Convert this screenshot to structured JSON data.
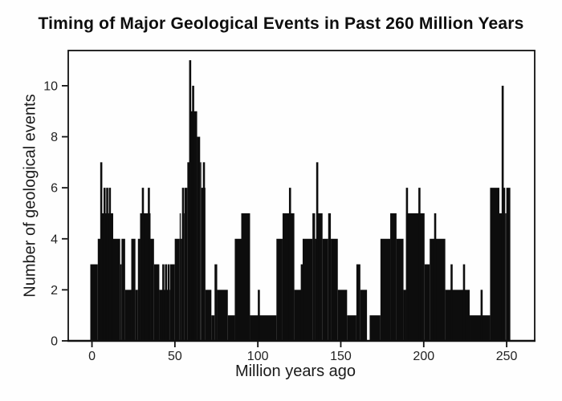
{
  "title": "Timing of Major Geological Events in Past 260 Million Years",
  "chart_data": {
    "type": "bar",
    "title": "Timing of Major Geological Events in Past 260 Million Years",
    "xlabel": "Million years ago",
    "ylabel": "Number of geological events",
    "xlim": [
      -14.3,
      266.9
    ],
    "ylim": [
      0,
      11.38
    ],
    "x_ticks": [
      0,
      50,
      100,
      150,
      200,
      250
    ],
    "y_ticks": [
      0,
      2,
      4,
      6,
      8,
      10
    ],
    "grid": false,
    "legend": false,
    "bar_color": "#0d0d0d",
    "axis_color": "#111111",
    "background_color": "#fefefe",
    "description": "Histogram (events per ~2 Myr bin) of numbers of major geological events versus time in millions of years ago; stepped black silhouette with thin spikes.",
    "segments_format": [
      "x_start_Myr",
      "x_end_Myr",
      "height_events"
    ],
    "segments": [
      [
        -1,
        3.5,
        3
      ],
      [
        3.5,
        5.3,
        4
      ],
      [
        5.3,
        12.8,
        5
      ],
      [
        12.8,
        17,
        4
      ],
      [
        17,
        17.8,
        3
      ],
      [
        17.8,
        20,
        4
      ],
      [
        20,
        23.7,
        2
      ],
      [
        23.7,
        26.2,
        4
      ],
      [
        26.2,
        27.7,
        2
      ],
      [
        27.7,
        29,
        4
      ],
      [
        29,
        35.3,
        5
      ],
      [
        35.3,
        37.4,
        4
      ],
      [
        37.4,
        40.6,
        3
      ],
      [
        40.6,
        47.1,
        2
      ],
      [
        47.1,
        49.9,
        3
      ],
      [
        49.9,
        52.9,
        4
      ],
      [
        52.9,
        53.5,
        5
      ],
      [
        53.5,
        54.2,
        4
      ],
      [
        54.2,
        55.8,
        5
      ],
      [
        55.8,
        57.5,
        6
      ],
      [
        57.5,
        59.2,
        7
      ],
      [
        59.2,
        63.4,
        9
      ],
      [
        63.4,
        65.2,
        8
      ],
      [
        65.2,
        65.9,
        7
      ],
      [
        65.9,
        68.4,
        6
      ],
      [
        68.4,
        72,
        2
      ],
      [
        72,
        73.9,
        1
      ],
      [
        73.9,
        75.5,
        3
      ],
      [
        75.5,
        81.9,
        2
      ],
      [
        81.9,
        86.1,
        1
      ],
      [
        86.1,
        90,
        4
      ],
      [
        90,
        95.3,
        5
      ],
      [
        95.3,
        111.2,
        1
      ],
      [
        111.2,
        114.9,
        4
      ],
      [
        114.9,
        122,
        5
      ],
      [
        122,
        127,
        2
      ],
      [
        127,
        132.9,
        4
      ],
      [
        132.9,
        134.5,
        5
      ],
      [
        134.5,
        135.3,
        4
      ],
      [
        135.3,
        139,
        5
      ],
      [
        139,
        142.4,
        4
      ],
      [
        142.4,
        144,
        5
      ],
      [
        144,
        148.2,
        4
      ],
      [
        148.2,
        153.8,
        2
      ],
      [
        153.8,
        159.4,
        1
      ],
      [
        159.4,
        161.8,
        3
      ],
      [
        161.8,
        165.8,
        2
      ],
      [
        165.8,
        167.4,
        0
      ],
      [
        167.4,
        173.9,
        1
      ],
      [
        173.9,
        179.8,
        4
      ],
      [
        179.8,
        183.6,
        5
      ],
      [
        183.6,
        187.8,
        4
      ],
      [
        187.8,
        189.4,
        2
      ],
      [
        189.4,
        200.5,
        5
      ],
      [
        200.5,
        203.6,
        3
      ],
      [
        203.6,
        213,
        4
      ],
      [
        213,
        227.7,
        2
      ],
      [
        227.7,
        240,
        1
      ],
      [
        240,
        245.6,
        6
      ],
      [
        245.6,
        247.4,
        5
      ],
      [
        247.4,
        249.1,
        6
      ],
      [
        249.1,
        249.8,
        5
      ],
      [
        249.8,
        252.2,
        6
      ]
    ],
    "spikes_format": [
      "x_Myr",
      "height_events"
    ],
    "spikes": [
      [
        5.6,
        7
      ],
      [
        7.6,
        6
      ],
      [
        9.2,
        6
      ],
      [
        10.8,
        6
      ],
      [
        30.7,
        6
      ],
      [
        34.3,
        6
      ],
      [
        43,
        3
      ],
      [
        44.6,
        3
      ],
      [
        46.2,
        3
      ],
      [
        54.9,
        6
      ],
      [
        59.2,
        11
      ],
      [
        61,
        10
      ],
      [
        67.5,
        7
      ],
      [
        100.6,
        2
      ],
      [
        119.4,
        6
      ],
      [
        126.5,
        3
      ],
      [
        135.8,
        7
      ],
      [
        189.9,
        6
      ],
      [
        197.4,
        6
      ],
      [
        206.9,
        5
      ],
      [
        216.8,
        3
      ],
      [
        224.3,
        3
      ],
      [
        234.9,
        2
      ],
      [
        247.6,
        10
      ]
    ]
  }
}
